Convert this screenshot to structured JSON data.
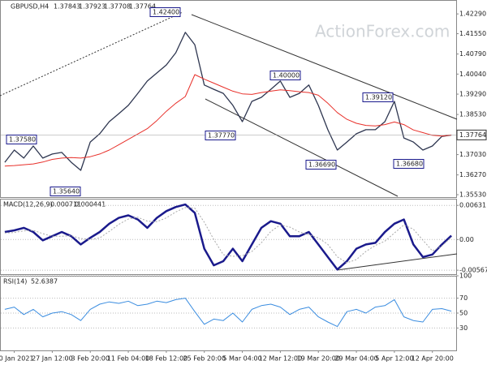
{
  "header": {
    "symbol": "GBPUSD,H4",
    "ohlc": [
      1.37843,
      1.37923,
      1.37708,
      1.37764
    ],
    "watermark": "ActionForex.com"
  },
  "chart_data": [
    {
      "type": "line",
      "title": "GBPUSD,H4",
      "categories": [
        null,
        "20 Jan 2021",
        null,
        null,
        null,
        "27 Jan 12:00",
        null,
        null,
        null,
        "3 Feb 20:00",
        null,
        null,
        null,
        "11 Feb 04:00",
        null,
        null,
        null,
        "18 Feb 12:00",
        null,
        null,
        null,
        "25 Feb 20:00",
        null,
        null,
        null,
        "5 Mar 04:00",
        null,
        null,
        null,
        "12 Mar 12:00",
        null,
        null,
        null,
        "19 Mar 20:00",
        null,
        null,
        null,
        "29 Mar 04:00",
        null,
        null,
        null,
        "5 Apr 12:00",
        null,
        null,
        null,
        "12 Apr 20:00",
        null,
        null
      ],
      "series": [
        {
          "name": "Price",
          "color": "#2e3650",
          "values": [
            1.3674,
            1.372,
            1.369,
            1.3735,
            1.369,
            1.3705,
            1.3711,
            1.3674,
            1.3644,
            1.375,
            1.3781,
            1.3826,
            1.3856,
            1.3887,
            1.3932,
            1.3978,
            1.4008,
            1.4038,
            1.4084,
            1.416,
            1.4114,
            1.3963,
            1.3947,
            1.3932,
            1.3887,
            1.3826,
            1.3902,
            1.3917,
            1.3947,
            1.3978,
            1.3917,
            1.3932,
            1.3963,
            1.3887,
            1.3796,
            1.372,
            1.375,
            1.3781,
            1.3796,
            1.3796,
            1.3826,
            1.3902,
            1.3765,
            1.375,
            1.372,
            1.3735,
            1.3771,
            1.3776
          ]
        },
        {
          "name": "MA",
          "color": "#e8302a",
          "values": [
            1.366,
            1.3662,
            1.3665,
            1.3668,
            1.3675,
            1.3685,
            1.369,
            1.3692,
            1.369,
            1.3695,
            1.3705,
            1.372,
            1.374,
            1.376,
            1.378,
            1.38,
            1.383,
            1.3865,
            1.3895,
            1.392,
            1.4002,
            1.3985,
            1.397,
            1.3955,
            1.394,
            1.393,
            1.3928,
            1.3935,
            1.394,
            1.3945,
            1.3942,
            1.3938,
            1.3935,
            1.3925,
            1.3895,
            1.386,
            1.3835,
            1.382,
            1.3812,
            1.381,
            1.3815,
            1.3825,
            1.3815,
            1.3795,
            1.3785,
            1.3775,
            1.3772,
            1.3776
          ]
        }
      ],
      "ylim": [
        1.3544,
        1.4281
      ],
      "yticks": [
        {
          "value": 1.4229,
          "label": "1.42290"
        },
        {
          "value": 1.4155,
          "label": "1.41550"
        },
        {
          "value": 1.4079,
          "label": "1.40790"
        },
        {
          "value": 1.4004,
          "label": "1.40040"
        },
        {
          "value": 1.3929,
          "label": "1.39290"
        },
        {
          "value": 1.3853,
          "label": "1.38530"
        },
        {
          "value": 1.3703,
          "label": "1.37030"
        },
        {
          "value": 1.3627,
          "label": "1.36270"
        },
        {
          "value": 1.3553,
          "label": "1.35530"
        }
      ],
      "annotations": [
        {
          "value": 1.424,
          "label": "1.42400"
        },
        {
          "value": 1.3758,
          "label": "1.37580"
        },
        {
          "value": 1.3564,
          "label": "1.35640"
        },
        {
          "value": 1.3777,
          "label": "1.37770"
        },
        {
          "value": 1.4,
          "label": "1.40000"
        },
        {
          "value": 1.3912,
          "label": "1.39120"
        },
        {
          "value": 1.3669,
          "label": "1.36690"
        },
        {
          "value": 1.3668,
          "label": "1.36680"
        }
      ]
    },
    {
      "type": "line",
      "title": "MACD(12,26,9)",
      "series": [
        {
          "name": "MACD",
          "color": "#1a1a8c",
          "values": [
            0.00139,
            0.00169,
            0.00216,
            0.00139,
            -0.00015,
            0.00062,
            0.00139,
            0.00062,
            -0.00092,
            0.00031,
            0.00139,
            0.00293,
            0.004,
            0.00447,
            0.0037,
            0.00216,
            0.004,
            0.00524,
            0.00601,
            0.00647,
            0.00493,
            -0.00169,
            -0.00477,
            -0.004,
            -0.00169,
            -0.004,
            -0.00092,
            0.00216,
            0.00339,
            0.00293,
            0.00062,
            0.00062,
            0.00139,
            -0.00092,
            -0.00323,
            -0.00554,
            -0.004,
            -0.00169,
            -0.00092,
            -0.00062,
            0.00139,
            0.00293,
            0.0037,
            -0.00092,
            -0.00323,
            -0.00277,
            -0.00092,
            0.000711
          ]
        },
        {
          "name": "Signal",
          "color": "#a8a8a8",
          "values": [
            0.0012,
            0.0013,
            0.0016,
            0.0017,
            0.0011,
            0.0006,
            0.0006,
            0.0007,
            0.0002,
            0,
            0.0003,
            0.0015,
            0.0028,
            0.0038,
            0.0041,
            0.0034,
            0.0033,
            0.004,
            0.0051,
            0.0059,
            0.0058,
            0.0032,
            0,
            -0.0028,
            -0.0031,
            -0.003,
            -0.0022,
            -0.0006,
            0.0015,
            0.0027,
            0.0023,
            0.0014,
            0.0009,
            0.0003,
            -0.0009,
            -0.0032,
            -0.0043,
            -0.0037,
            -0.0022,
            -0.0011,
            -0.0003,
            0.0012,
            0.0027,
            0.0019,
            -0.0001,
            -0.0021,
            -0.0012,
            0.000441
          ]
        }
      ],
      "ylim": [
        -0.0064,
        0.00754
      ],
      "yticks": [
        0.00631,
        {
          "value": 0,
          "label": "0.00"
        },
        -0.005671
      ]
    },
    {
      "type": "line",
      "title": "RSI(14)",
      "series": [
        {
          "name": "RSI",
          "color": "#3b8de0",
          "values": [
            55,
            58,
            48,
            55,
            45,
            50,
            52,
            48,
            40,
            55,
            62,
            65,
            63,
            66,
            60,
            62,
            66,
            64,
            68,
            70,
            52,
            35,
            42,
            40,
            50,
            38,
            55,
            60,
            62,
            58,
            48,
            55,
            58,
            45,
            38,
            32,
            52,
            55,
            50,
            58,
            60,
            68,
            45,
            40,
            38,
            55,
            56,
            52.6387
          ]
        }
      ],
      "ylim": [
        0,
        100
      ],
      "yticks": [
        100,
        70,
        50,
        30
      ]
    }
  ]
}
